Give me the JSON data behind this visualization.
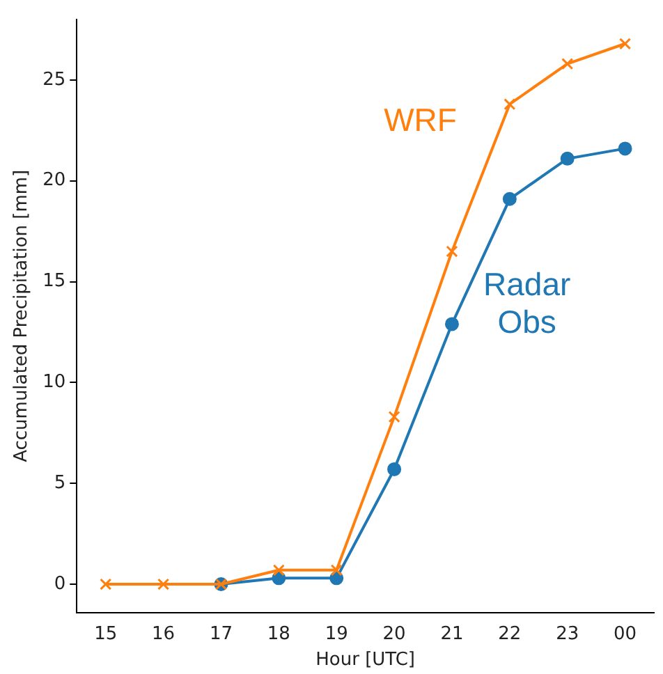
{
  "chart_data": {
    "type": "line",
    "xlabel": "Hour [UTC]",
    "ylabel": "Accumulated Precipitation [mm]",
    "categories": [
      "15",
      "16",
      "17",
      "18",
      "19",
      "20",
      "21",
      "22",
      "23",
      "00"
    ],
    "ylim": [
      -1.4,
      28
    ],
    "yticks": [
      0,
      5,
      10,
      15,
      20,
      25
    ],
    "grid": false,
    "legend": false,
    "series": [
      {
        "name": "WRF",
        "color": "#ff7f0e",
        "marker": "cross",
        "values": [
          0,
          0,
          0,
          0.7,
          0.7,
          8.3,
          16.5,
          23.8,
          25.8,
          26.8
        ]
      },
      {
        "name": "Radar Obs",
        "color": "#1f77b4",
        "marker": "circle",
        "values": [
          null,
          null,
          0,
          0.3,
          0.3,
          5.7,
          12.9,
          19.1,
          21.1,
          21.6
        ]
      }
    ]
  }
}
